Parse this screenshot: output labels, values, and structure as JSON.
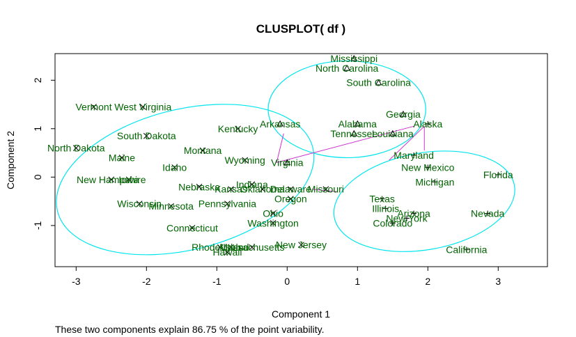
{
  "chart_data": {
    "type": "scatter",
    "title": "CLUSPLOT( df )",
    "xlabel": "Component 1",
    "ylabel": "Component 2",
    "footer": "These two components explain 86.75 % of the point variability.",
    "xlim": [
      -3.3,
      3.7
    ],
    "ylim": [
      -1.85,
      2.55
    ],
    "xticks": [
      -3,
      -2,
      -1,
      0,
      1,
      2,
      3
    ],
    "yticks": [
      -1,
      0,
      1,
      2
    ],
    "colors": {
      "ellipse": "#00e5ee",
      "line": "#cc33cc",
      "label": "#006400",
      "point": "#000000"
    },
    "points": [
      {
        "name": "Mississippi",
        "x": 0.95,
        "y": 2.45,
        "marker": "triangle"
      },
      {
        "name": "North Carolina",
        "x": 0.85,
        "y": 2.25,
        "marker": "triangle"
      },
      {
        "name": "South Carolina",
        "x": 1.3,
        "y": 1.95,
        "marker": "triangle"
      },
      {
        "name": "Georgia",
        "x": 1.65,
        "y": 1.3,
        "marker": "triangle"
      },
      {
        "name": "Alabama",
        "x": 1.0,
        "y": 1.1,
        "marker": "triangle"
      },
      {
        "name": "Alaska",
        "x": 2.0,
        "y": 1.1,
        "marker": "plus"
      },
      {
        "name": "Tennessee",
        "x": 0.95,
        "y": 0.9,
        "marker": "triangle"
      },
      {
        "name": "Louisiana",
        "x": 1.5,
        "y": 0.9,
        "marker": "triangle"
      },
      {
        "name": "Arkansas",
        "x": -0.1,
        "y": 1.1,
        "marker": "triangle"
      },
      {
        "name": "Vermont",
        "x": -2.75,
        "y": 1.45,
        "marker": "cross"
      },
      {
        "name": "West Virginia",
        "x": -2.05,
        "y": 1.45,
        "marker": "cross"
      },
      {
        "name": "South Dakota",
        "x": -2.0,
        "y": 0.85,
        "marker": "cross"
      },
      {
        "name": "Kentucky",
        "x": -0.7,
        "y": 1.0,
        "marker": "cross"
      },
      {
        "name": "North Dakota",
        "x": -3.0,
        "y": 0.6,
        "marker": "cross"
      },
      {
        "name": "Maine",
        "x": -2.35,
        "y": 0.4,
        "marker": "cross"
      },
      {
        "name": "Montana",
        "x": -1.2,
        "y": 0.55,
        "marker": "cross"
      },
      {
        "name": "Wyoming",
        "x": -0.6,
        "y": 0.35,
        "marker": "cross"
      },
      {
        "name": "Virginia",
        "x": 0.0,
        "y": 0.3,
        "marker": "triangle"
      },
      {
        "name": "Idaho",
        "x": -1.6,
        "y": 0.2,
        "marker": "cross"
      },
      {
        "name": "Maryland",
        "x": 1.8,
        "y": 0.45,
        "marker": "plus"
      },
      {
        "name": "New Hampshire",
        "x": -2.5,
        "y": -0.05,
        "marker": "cross"
      },
      {
        "name": "Iowa",
        "x": -2.25,
        "y": -0.05,
        "marker": "cross"
      },
      {
        "name": "Nebraska",
        "x": -1.25,
        "y": -0.2,
        "marker": "cross"
      },
      {
        "name": "Kansas",
        "x": -0.8,
        "y": -0.25,
        "marker": "cross"
      },
      {
        "name": "Indiana",
        "x": -0.5,
        "y": -0.15,
        "marker": "cross"
      },
      {
        "name": "Oklahoma",
        "x": -0.35,
        "y": -0.25,
        "marker": "cross"
      },
      {
        "name": "Delaware",
        "x": 0.05,
        "y": -0.25,
        "marker": "cross"
      },
      {
        "name": "Missouri",
        "x": 0.55,
        "y": -0.25,
        "marker": "cross"
      },
      {
        "name": "New Mexico",
        "x": 2.0,
        "y": 0.2,
        "marker": "plus"
      },
      {
        "name": "Florida",
        "x": 3.0,
        "y": 0.05,
        "marker": "plus"
      },
      {
        "name": "Michigan",
        "x": 2.1,
        "y": -0.1,
        "marker": "plus"
      },
      {
        "name": "Texas",
        "x": 1.35,
        "y": -0.45,
        "marker": "plus"
      },
      {
        "name": "Oregon",
        "x": 0.05,
        "y": -0.45,
        "marker": "cross"
      },
      {
        "name": "Wisconsin",
        "x": -2.1,
        "y": -0.55,
        "marker": "cross"
      },
      {
        "name": "Minnesota",
        "x": -1.65,
        "y": -0.6,
        "marker": "cross"
      },
      {
        "name": "Pennsylvania",
        "x": -0.85,
        "y": -0.55,
        "marker": "cross"
      },
      {
        "name": "Illinois",
        "x": 1.4,
        "y": -0.65,
        "marker": "plus"
      },
      {
        "name": "Arizona",
        "x": 1.8,
        "y": -0.75,
        "marker": "plus"
      },
      {
        "name": "New York",
        "x": 1.7,
        "y": -0.85,
        "marker": "plus"
      },
      {
        "name": "Nevada",
        "x": 2.85,
        "y": -0.75,
        "marker": "plus"
      },
      {
        "name": "Ohio",
        "x": -0.2,
        "y": -0.75,
        "marker": "cross"
      },
      {
        "name": "Washington",
        "x": -0.2,
        "y": -0.95,
        "marker": "cross"
      },
      {
        "name": "Colorado",
        "x": 1.5,
        "y": -0.95,
        "marker": "plus"
      },
      {
        "name": "Connecticut",
        "x": -1.35,
        "y": -1.05,
        "marker": "cross"
      },
      {
        "name": "New Jersey",
        "x": 0.2,
        "y": -1.4,
        "marker": "cross"
      },
      {
        "name": "Rhode Island",
        "x": -0.95,
        "y": -1.45,
        "marker": "cross"
      },
      {
        "name": "Massachusetts",
        "x": -0.5,
        "y": -1.45,
        "marker": "cross"
      },
      {
        "name": "Utah",
        "x": -0.8,
        "y": -1.45,
        "marker": "cross"
      },
      {
        "name": "Hawaii",
        "x": -0.85,
        "y": -1.55,
        "marker": "cross"
      },
      {
        "name": "California",
        "x": 2.55,
        "y": -1.5,
        "marker": "plus"
      }
    ],
    "ellipses": [
      {
        "name": "cluster-1",
        "cx": -1.45,
        "cy": -0.05,
        "rx": 1.87,
        "ry": 1.45,
        "angle_deg": -14
      },
      {
        "name": "cluster-2",
        "cx": 0.85,
        "cy": 1.4,
        "rx": 1.12,
        "ry": 1.0,
        "angle_deg": 0
      },
      {
        "name": "cluster-3",
        "cx": 1.95,
        "cy": -0.5,
        "rx": 1.3,
        "ry": 1.0,
        "angle_deg": -10
      }
    ],
    "links": [
      {
        "from": [
          -0.15,
          0.3
        ],
        "to": [
          1.8,
          1.05
        ]
      },
      {
        "from": [
          -0.15,
          0.3
        ],
        "to": [
          -0.05,
          0.9
        ]
      },
      {
        "from": [
          0.35,
          -0.25
        ],
        "to": [
          0.7,
          -0.3
        ]
      },
      {
        "from": [
          1.45,
          0.35
        ],
        "to": [
          1.95,
          1.05
        ]
      },
      {
        "from": [
          1.95,
          1.05
        ],
        "to": [
          1.95,
          0.55
        ]
      }
    ]
  }
}
